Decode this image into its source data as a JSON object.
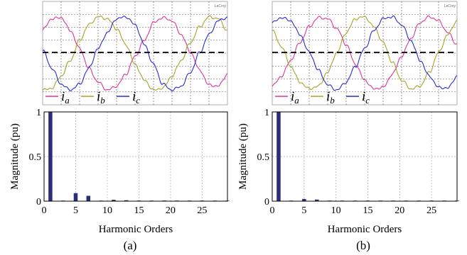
{
  "legend_symbol": "i",
  "colors": {
    "ia": "#e0339a",
    "ib": "#a5a525",
    "ic": "#2a2ad8",
    "bars": "#2c2c78"
  },
  "panels": [
    {
      "label": "(a)",
      "scope_tag": "LeCroy",
      "legend": [
        {
          "sub": "a",
          "color": "#e0339a"
        },
        {
          "sub": "b",
          "color": "#a5a525"
        },
        {
          "sub": "c",
          "color": "#2a2ad8"
        }
      ]
    },
    {
      "label": "(b)",
      "scope_tag": "LeCroy",
      "legend": [
        {
          "sub": "a",
          "color": "#e0339a"
        },
        {
          "sub": "b",
          "color": "#a5a525"
        },
        {
          "sub": "c",
          "color": "#2a2ad8"
        }
      ]
    }
  ],
  "chart_data": [
    {
      "type": "line",
      "panel": "a",
      "x": [
        0,
        0.05,
        0.1,
        0.15,
        0.2,
        0.25,
        0.3,
        0.35,
        0.4,
        0.45,
        0.5,
        0.55,
        0.6,
        0.65,
        0.7,
        0.75,
        0.8,
        0.85,
        0.9,
        0.95,
        1.0
      ],
      "series": [
        {
          "name": "ia",
          "values": [
            0.57,
            0.85,
            0.88,
            0.55,
            0.1,
            -0.4,
            -0.75,
            -0.95,
            -0.85,
            -0.55,
            -0.1,
            0.3,
            0.75,
            0.88,
            0.8,
            0.45,
            0.0,
            -0.45,
            -0.82,
            -0.85,
            -0.55
          ]
        },
        {
          "name": "ib",
          "values": [
            -0.95,
            -0.9,
            -0.6,
            -0.2,
            0.3,
            0.7,
            0.9,
            0.85,
            0.6,
            0.2,
            -0.3,
            -0.7,
            -0.95,
            -0.9,
            -0.6,
            -0.2,
            0.25,
            0.65,
            0.9,
            0.85,
            0.55
          ]
        },
        {
          "name": "ic",
          "values": [
            0.05,
            -0.4,
            -0.8,
            -0.95,
            -0.8,
            -0.4,
            0.1,
            0.5,
            0.85,
            0.9,
            0.7,
            0.2,
            -0.3,
            -0.8,
            -0.95,
            -0.85,
            -0.5,
            0.0,
            0.45,
            0.8,
            0.88
          ]
        }
      ]
    },
    {
      "type": "bar",
      "panel": "a",
      "x": [
        1,
        3,
        5,
        7,
        9,
        11,
        13,
        15,
        17,
        19,
        21,
        23,
        25,
        27,
        29
      ],
      "values": [
        1.0,
        0.005,
        0.09,
        0.06,
        0.005,
        0.015,
        0.01,
        0.005,
        0.005,
        0.007,
        0.004,
        0.004,
        0.004,
        0.003,
        0.003
      ],
      "xlabel": "Harmonic Orders",
      "ylabel": "Magnitude (pu)",
      "xlim": [
        0,
        29
      ],
      "ylim": [
        0,
        1
      ],
      "xticks": [
        0,
        5,
        10,
        15,
        20,
        25
      ],
      "yticks": [
        0,
        0.5,
        1
      ],
      "ytick_labels": [
        "0",
        "0.5",
        "1"
      ],
      "grid": true
    },
    {
      "type": "line",
      "panel": "b",
      "x": [
        0,
        0.05,
        0.1,
        0.15,
        0.2,
        0.25,
        0.3,
        0.35,
        0.4,
        0.45,
        0.5,
        0.55,
        0.6,
        0.65,
        0.7,
        0.75,
        0.8,
        0.85,
        0.9,
        0.95,
        1.0
      ],
      "series": [
        {
          "name": "ia",
          "values": [
            -0.85,
            -0.6,
            -0.2,
            0.25,
            0.65,
            0.88,
            0.85,
            0.6,
            0.2,
            -0.3,
            -0.7,
            -0.92,
            -0.88,
            -0.55,
            -0.1,
            0.35,
            0.75,
            0.9,
            0.8,
            0.5,
            0.2
          ]
        },
        {
          "name": "ib",
          "values": [
            0.55,
            0.15,
            -0.35,
            -0.75,
            -0.92,
            -0.85,
            -0.5,
            0.0,
            0.5,
            0.85,
            0.9,
            0.65,
            0.25,
            -0.25,
            -0.7,
            -0.92,
            -0.85,
            -0.5,
            0.0,
            0.45,
            0.8
          ]
        },
        {
          "name": "ic",
          "values": [
            0.75,
            0.88,
            0.8,
            0.45,
            0.0,
            -0.45,
            -0.82,
            -0.95,
            -0.75,
            -0.35,
            0.1,
            0.55,
            0.85,
            0.9,
            0.7,
            0.3,
            -0.2,
            -0.6,
            -0.88,
            -0.9,
            -0.6
          ]
        }
      ]
    },
    {
      "type": "bar",
      "panel": "b",
      "x": [
        1,
        3,
        5,
        7,
        9,
        11,
        13,
        15,
        17,
        19,
        21,
        23,
        25,
        27,
        29
      ],
      "values": [
        1.0,
        0.004,
        0.025,
        0.018,
        0.004,
        0.006,
        0.004,
        0.003,
        0.003,
        0.004,
        0.003,
        0.003,
        0.003,
        0.002,
        0.002
      ],
      "xlabel": "Harmonic Orders",
      "ylabel": "Magnitude (pu)",
      "xlim": [
        0,
        29
      ],
      "ylim": [
        0,
        1
      ],
      "xticks": [
        0,
        5,
        10,
        15,
        20,
        25
      ],
      "yticks": [
        0,
        0.5,
        1
      ],
      "ytick_labels": [
        "0",
        "0.5",
        "1"
      ],
      "grid": true
    }
  ]
}
